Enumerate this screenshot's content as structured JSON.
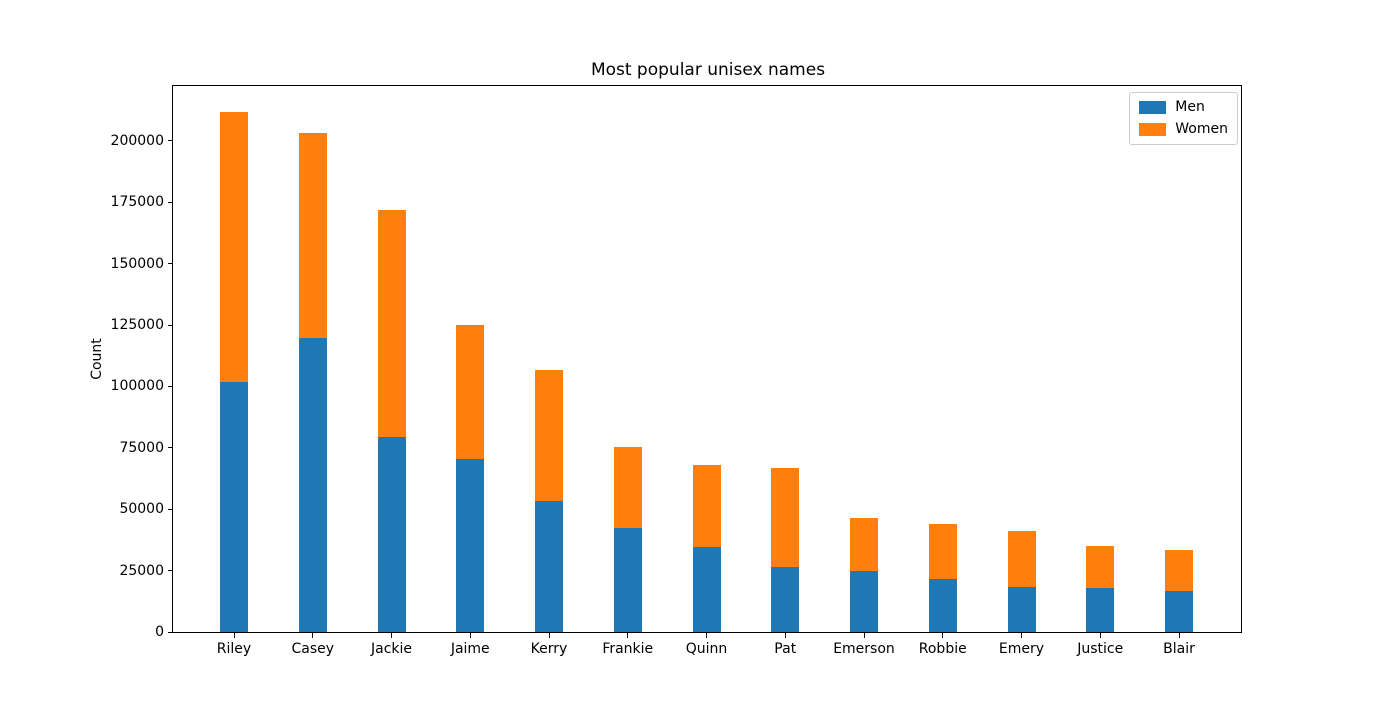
{
  "title": "Most popular unisex names",
  "ylabel": "Count",
  "legend": {
    "position": "upper right",
    "items": [
      {
        "label": "Men",
        "color": "#1f77b4"
      },
      {
        "label": "Women",
        "color": "#ff7f0e"
      }
    ]
  },
  "chart_data": {
    "type": "bar",
    "stacked": true,
    "title": "Most popular unisex names",
    "xlabel": "",
    "ylabel": "Count",
    "categories": [
      "Riley",
      "Casey",
      "Jackie",
      "Jaime",
      "Kerry",
      "Frankie",
      "Quinn",
      "Pat",
      "Emerson",
      "Robbie",
      "Emery",
      "Justice",
      "Blair"
    ],
    "series": [
      {
        "name": "Men",
        "color": "#1f77b4",
        "values": [
          102000,
          119600,
          79300,
          70600,
          53300,
          42200,
          34500,
          26500,
          25000,
          21600,
          18300,
          17900,
          16500
        ]
      },
      {
        "name": "Women",
        "color": "#ff7f0e",
        "values": [
          109800,
          83800,
          92400,
          54300,
          53500,
          33100,
          33400,
          40400,
          21300,
          22400,
          22700,
          17000,
          16900
        ]
      }
    ],
    "totals": [
      211800,
      203400,
      171700,
      124900,
      106800,
      75300,
      67900,
      66900,
      46300,
      44000,
      41000,
      34900,
      33400
    ],
    "ylim": [
      0,
      222400
    ],
    "yticks": [
      0,
      25000,
      50000,
      75000,
      100000,
      125000,
      150000,
      175000,
      200000
    ],
    "grid": false,
    "legend_position": "upper right",
    "axis_color": "#000000",
    "background_color": "#ffffff"
  }
}
